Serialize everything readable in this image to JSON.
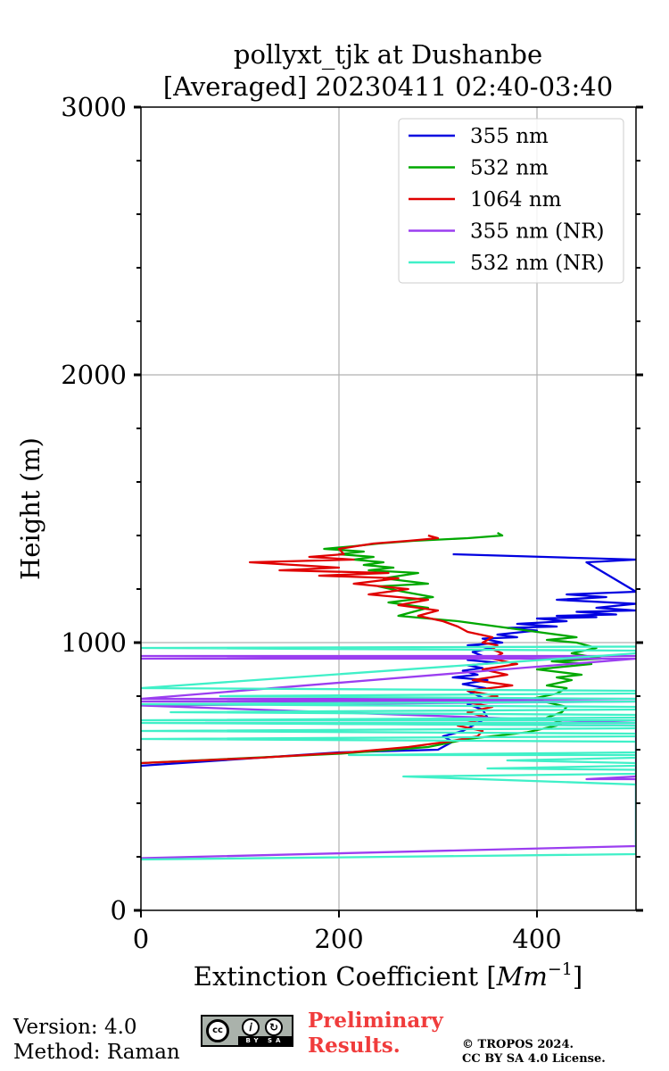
{
  "chart_data": {
    "type": "line",
    "title": "pollyxt_tjk at Dushanbe",
    "subtitle": "[Averaged] 20230411 02:40-03:40",
    "xlabel": "Extinction Coefficient [Mm⁻¹]",
    "xlabel_prefix": "Extinction Coefficient [",
    "xlabel_unit": "Mm",
    "xlabel_exp": "−1",
    "xlabel_suffix": "]",
    "ylabel": "Height (m)",
    "xlim": [
      0,
      500
    ],
    "ylim": [
      0,
      3000
    ],
    "xticks": [
      0,
      200,
      400
    ],
    "xtick_labels": [
      "0",
      "200",
      "400"
    ],
    "yticks": [
      0,
      1000,
      2000,
      3000
    ],
    "ytick_labels": [
      "0",
      "1000",
      "2000",
      "3000"
    ],
    "grid": true,
    "legend_position": "top-right",
    "series": [
      {
        "name": "355 nm",
        "color": "#0000e0",
        "x": [
          0,
          200,
          300,
          315,
          305,
          325,
          340,
          350,
          345,
          330,
          348,
          335,
          330,
          348,
          325,
          350,
          315,
          340,
          325,
          345,
          330,
          360,
          330,
          345,
          335,
          355,
          330,
          365,
          345,
          380,
          360,
          400,
          370,
          420,
          380,
          430,
          400,
          460,
          420,
          480,
          440,
          500,
          460,
          500,
          420,
          470,
          430,
          500,
          450,
          500,
          315
        ],
        "y": [
          540,
          590,
          600,
          630,
          650,
          670,
          700,
          720,
          750,
          770,
          790,
          810,
          820,
          830,
          845,
          860,
          870,
          880,
          895,
          905,
          915,
          925,
          935,
          950,
          965,
          980,
          990,
          1000,
          1015,
          1020,
          1030,
          1045,
          1055,
          1060,
          1070,
          1080,
          1090,
          1095,
          1100,
          1105,
          1115,
          1120,
          1130,
          1145,
          1160,
          1170,
          1180,
          1190,
          1300,
          1310,
          1330
        ]
      },
      {
        "name": "532 nm",
        "color": "#00a800",
        "x": [
          0,
          200,
          290,
          330,
          390,
          420,
          425,
          410,
          425,
          430,
          395,
          420,
          430,
          410,
          435,
          420,
          445,
          400,
          455,
          415,
          465,
          435,
          460,
          440,
          410,
          440,
          400,
          360,
          320,
          260,
          290,
          250,
          295,
          265,
          240,
          290,
          245,
          280,
          230,
          255,
          225,
          245,
          215,
          235,
          200,
          225,
          185,
          215,
          240,
          275,
          330,
          365,
          360
        ],
        "y": [
          550,
          585,
          610,
          640,
          665,
          690,
          700,
          720,
          740,
          760,
          790,
          810,
          830,
          840,
          860,
          870,
          880,
          900,
          920,
          930,
          940,
          960,
          980,
          1000,
          1010,
          1020,
          1040,
          1060,
          1080,
          1100,
          1130,
          1150,
          1170,
          1190,
          1210,
          1220,
          1240,
          1260,
          1270,
          1280,
          1290,
          1300,
          1310,
          1320,
          1330,
          1340,
          1350,
          1360,
          1370,
          1380,
          1390,
          1400,
          1410
        ]
      },
      {
        "name": "1064 nm",
        "color": "#e00000",
        "x": [
          0,
          120,
          210,
          270,
          310,
          340,
          345,
          320,
          350,
          330,
          355,
          325,
          360,
          330,
          375,
          335,
          370,
          345,
          380,
          355,
          365,
          355,
          360,
          345,
          355,
          330,
          320,
          305,
          280,
          300,
          260,
          290,
          230,
          270,
          215,
          260,
          180,
          250,
          140,
          200,
          110,
          215,
          170,
          205,
          200,
          235,
          270,
          300,
          290
        ],
        "y": [
          550,
          570,
          590,
          610,
          630,
          650,
          670,
          690,
          720,
          740,
          760,
          780,
          800,
          820,
          840,
          860,
          880,
          900,
          920,
          940,
          960,
          975,
          990,
          1000,
          1020,
          1040,
          1060,
          1080,
          1100,
          1120,
          1140,
          1160,
          1180,
          1200,
          1220,
          1240,
          1250,
          1260,
          1270,
          1280,
          1300,
          1310,
          1320,
          1330,
          1350,
          1370,
          1380,
          1390,
          1400
        ]
      },
      {
        "name": "355 nm (NR)",
        "color": "#9b3ef0",
        "x": [
          0,
          500,
          500,
          500,
          500,
          450,
          500,
          500,
          500,
          500,
          65,
          500,
          0,
          500,
          0,
          500,
          0,
          500,
          0,
          500,
          0
        ],
        "y": [
          195,
          240,
          240,
          420,
          490,
          490,
          500,
          680,
          680,
          690,
          700,
          700,
          765,
          780,
          780,
          790,
          790,
          940,
          940,
          950,
          950
        ]
      },
      {
        "name": "532 nm (NR)",
        "color": "#40f0c8",
        "x": [
          0,
          500,
          500,
          265,
          500,
          500,
          350,
          500,
          500,
          370,
          500,
          500,
          210,
          500,
          500,
          0,
          500,
          500,
          0,
          500,
          500,
          0,
          500,
          500,
          0,
          500,
          500,
          30,
          500,
          500,
          0,
          500,
          500,
          80,
          500,
          500,
          0,
          500,
          500,
          0,
          500
        ],
        "y": [
          190,
          210,
          470,
          500,
          510,
          525,
          530,
          540,
          550,
          560,
          570,
          580,
          580,
          590,
          630,
          640,
          650,
          660,
          670,
          680,
          690,
          700,
          700,
          710,
          710,
          720,
          730,
          740,
          750,
          760,
          770,
          780,
          790,
          800,
          810,
          820,
          830,
          960,
          970,
          980,
          985
        ]
      }
    ]
  },
  "footer": {
    "version": "Version: 4.0",
    "method": "Method: Raman",
    "license_badge": "cc-by-sa-badge",
    "cc_symbol": "cc",
    "license_short": "BY SA",
    "preliminary_line1": "Preliminary",
    "preliminary_line2": "Results.",
    "copyright_line1": "© TROPOS 2024.",
    "copyright_line2": "CC BY SA 4.0 License.",
    "colors": {
      "preliminary": "#f03c3c"
    }
  }
}
